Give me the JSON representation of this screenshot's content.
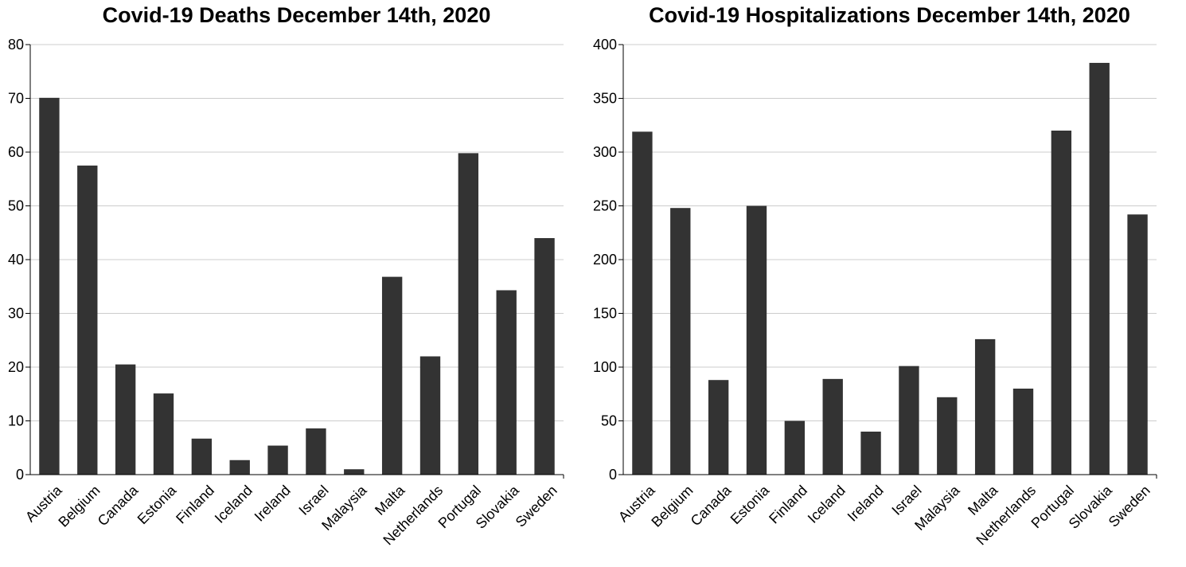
{
  "colors": {
    "bar": "#333333",
    "grid": "#cccccc",
    "axis": "#000000"
  },
  "chart_data": [
    {
      "type": "bar",
      "title": "Covid-19 Deaths December 14th, 2020",
      "xlabel": "",
      "ylabel": "",
      "categories": [
        "Austria",
        "Belgium",
        "Canada",
        "Estonia",
        "Finland",
        "Iceland",
        "Ireland",
        "Israel",
        "Malaysia",
        "Malta",
        "Netherlands",
        "Portugal",
        "Slovakia",
        "Sweden"
      ],
      "values": [
        70.1,
        57.5,
        20.5,
        15.1,
        6.7,
        2.7,
        5.4,
        8.6,
        1.0,
        36.8,
        22.0,
        59.8,
        34.3,
        44.0
      ],
      "ylim": [
        0,
        80
      ],
      "yticks": [
        0,
        10,
        20,
        30,
        40,
        50,
        60,
        70,
        80
      ],
      "grid": true,
      "legend": "none"
    },
    {
      "type": "bar",
      "title": "Covid-19 Hospitalizations December 14th, 2020",
      "xlabel": "",
      "ylabel": "",
      "categories": [
        "Austria",
        "Belgium",
        "Canada",
        "Estonia",
        "Finland",
        "Iceland",
        "Ireland",
        "Israel",
        "Malaysia",
        "Malta",
        "Netherlands",
        "Portugal",
        "Slovakia",
        "Sweden"
      ],
      "values": [
        319,
        248,
        88,
        250,
        50,
        89,
        40,
        101,
        72,
        126,
        80,
        320,
        383,
        242
      ],
      "ylim": [
        0,
        400
      ],
      "yticks": [
        0,
        50,
        100,
        150,
        200,
        250,
        300,
        350,
        400
      ],
      "grid": true,
      "legend": "none"
    }
  ]
}
